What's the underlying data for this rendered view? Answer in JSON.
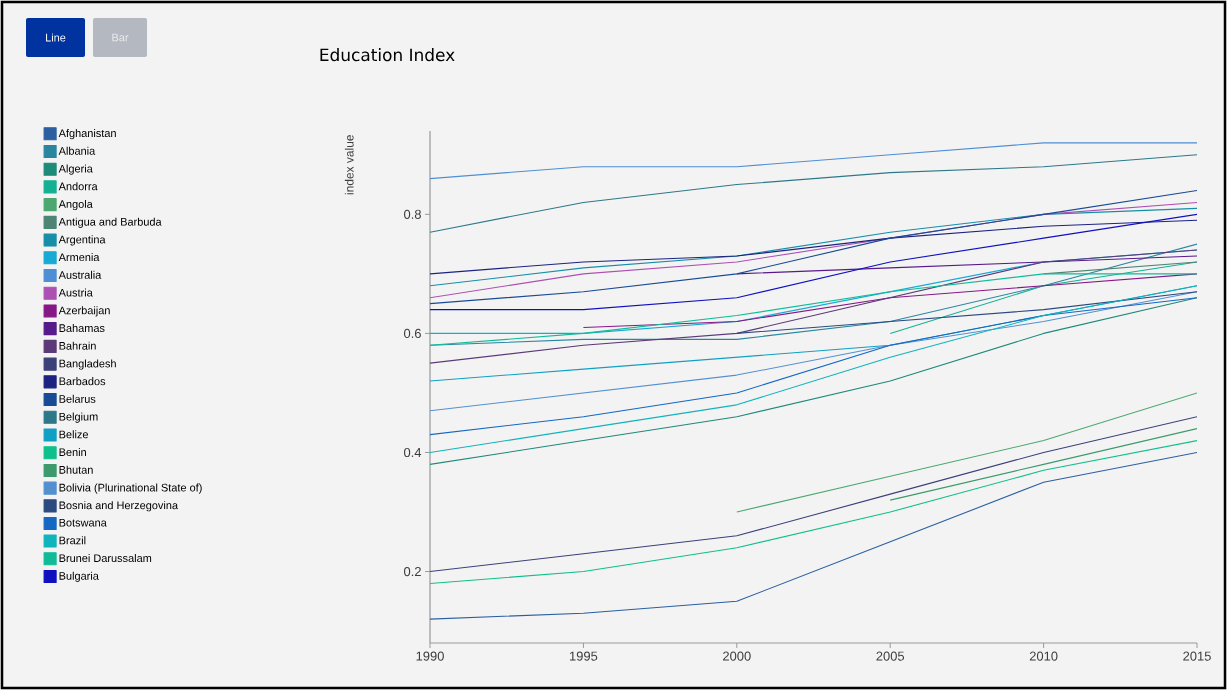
{
  "chart_data": {
    "type": "line",
    "title": "Education Index",
    "ylabel": "index value",
    "annotations": [
      "Line",
      "Bar"
    ],
    "x": [
      1990,
      1995,
      2000,
      2005,
      2010,
      2015
    ],
    "xlim": [
      1990,
      2015
    ],
    "xticks": [
      1990,
      1995,
      2000,
      2005,
      2010,
      2015
    ],
    "ylim": [
      0.08,
      0.94
    ],
    "yticks": [
      0.2,
      0.4,
      0.6,
      0.8
    ],
    "legend": "left",
    "marker": "none",
    "line_style": "solid",
    "series": [
      {
        "name": "Afghanistan",
        "color": "#2b5fa0",
        "values": [
          0.12,
          0.13,
          0.15,
          0.25,
          0.35,
          0.4
        ]
      },
      {
        "name": "Albania",
        "color": "#2a86a0",
        "values": [
          0.58,
          0.59,
          0.59,
          0.62,
          0.68,
          0.75
        ]
      },
      {
        "name": "Algeria",
        "color": "#1e8a78",
        "values": [
          0.38,
          0.42,
          0.46,
          0.52,
          0.6,
          0.66
        ]
      },
      {
        "name": "Andorra",
        "color": "#14b094",
        "values": [
          null,
          null,
          null,
          0.6,
          0.68,
          0.72
        ]
      },
      {
        "name": "Angola",
        "color": "#4ca870",
        "values": [
          null,
          null,
          0.3,
          0.36,
          0.42,
          0.5
        ]
      },
      {
        "name": "Antigua and Barbuda",
        "color": "#4e8474",
        "values": [
          null,
          null,
          null,
          null,
          0.7,
          0.72
        ]
      },
      {
        "name": "Argentina",
        "color": "#168ea8",
        "values": [
          0.68,
          0.71,
          0.73,
          0.77,
          0.8,
          0.81
        ]
      },
      {
        "name": "Armenia",
        "color": "#16aad4",
        "values": [
          0.6,
          0.6,
          0.62,
          0.67,
          0.72,
          0.74
        ]
      },
      {
        "name": "Australia",
        "color": "#4e8ed4",
        "values": [
          0.86,
          0.88,
          0.88,
          0.9,
          0.92,
          0.92
        ]
      },
      {
        "name": "Austria",
        "color": "#ac50b4",
        "values": [
          0.66,
          0.7,
          0.72,
          0.76,
          0.8,
          0.82
        ]
      },
      {
        "name": "Azerbaijan",
        "color": "#861886",
        "values": [
          null,
          0.61,
          0.62,
          0.66,
          0.68,
          0.7
        ]
      },
      {
        "name": "Bahamas",
        "color": "#561a8a",
        "values": [
          null,
          null,
          0.7,
          0.71,
          0.72,
          0.73
        ]
      },
      {
        "name": "Bahrain",
        "color": "#5c3a78",
        "values": [
          0.55,
          0.58,
          0.6,
          0.66,
          0.72,
          0.74
        ]
      },
      {
        "name": "Bangladesh",
        "color": "#3c4078",
        "values": [
          0.2,
          0.23,
          0.26,
          0.33,
          0.4,
          0.46
        ]
      },
      {
        "name": "Barbados",
        "color": "#1c2280",
        "values": [
          0.7,
          0.72,
          0.73,
          0.76,
          0.78,
          0.79
        ]
      },
      {
        "name": "Belarus",
        "color": "#184a96",
        "values": [
          0.65,
          0.67,
          0.7,
          0.76,
          0.8,
          0.84
        ]
      },
      {
        "name": "Belgium",
        "color": "#2c7888",
        "values": [
          0.77,
          0.82,
          0.85,
          0.87,
          0.88,
          0.9
        ]
      },
      {
        "name": "Belize",
        "color": "#10a0c4",
        "values": [
          0.52,
          0.54,
          0.56,
          0.58,
          0.63,
          0.68
        ]
      },
      {
        "name": "Benin",
        "color": "#10c08c",
        "values": [
          0.18,
          0.2,
          0.24,
          0.3,
          0.37,
          0.42
        ]
      },
      {
        "name": "Bhutan",
        "color": "#3c9a6c",
        "values": [
          null,
          null,
          null,
          0.32,
          0.38,
          0.44
        ]
      },
      {
        "name": "Bolivia (Plurinational State of)",
        "color": "#5490d0",
        "values": [
          0.47,
          0.5,
          0.53,
          0.58,
          0.62,
          0.67
        ]
      },
      {
        "name": "Bosnia and Herzegovina",
        "color": "#2a4a80",
        "values": [
          null,
          null,
          0.6,
          0.62,
          0.64,
          0.67
        ]
      },
      {
        "name": "Botswana",
        "color": "#1468c4",
        "values": [
          0.43,
          0.46,
          0.5,
          0.58,
          0.63,
          0.66
        ]
      },
      {
        "name": "Brazil",
        "color": "#10b4bc",
        "values": [
          0.4,
          0.44,
          0.48,
          0.56,
          0.63,
          0.68
        ]
      },
      {
        "name": "Brunei Darussalam",
        "color": "#10bc98",
        "values": [
          0.58,
          0.6,
          0.63,
          0.67,
          0.7,
          0.7
        ]
      },
      {
        "name": "Bulgaria",
        "color": "#1010c0",
        "values": [
          0.64,
          0.64,
          0.66,
          0.72,
          0.76,
          0.8
        ]
      }
    ]
  }
}
